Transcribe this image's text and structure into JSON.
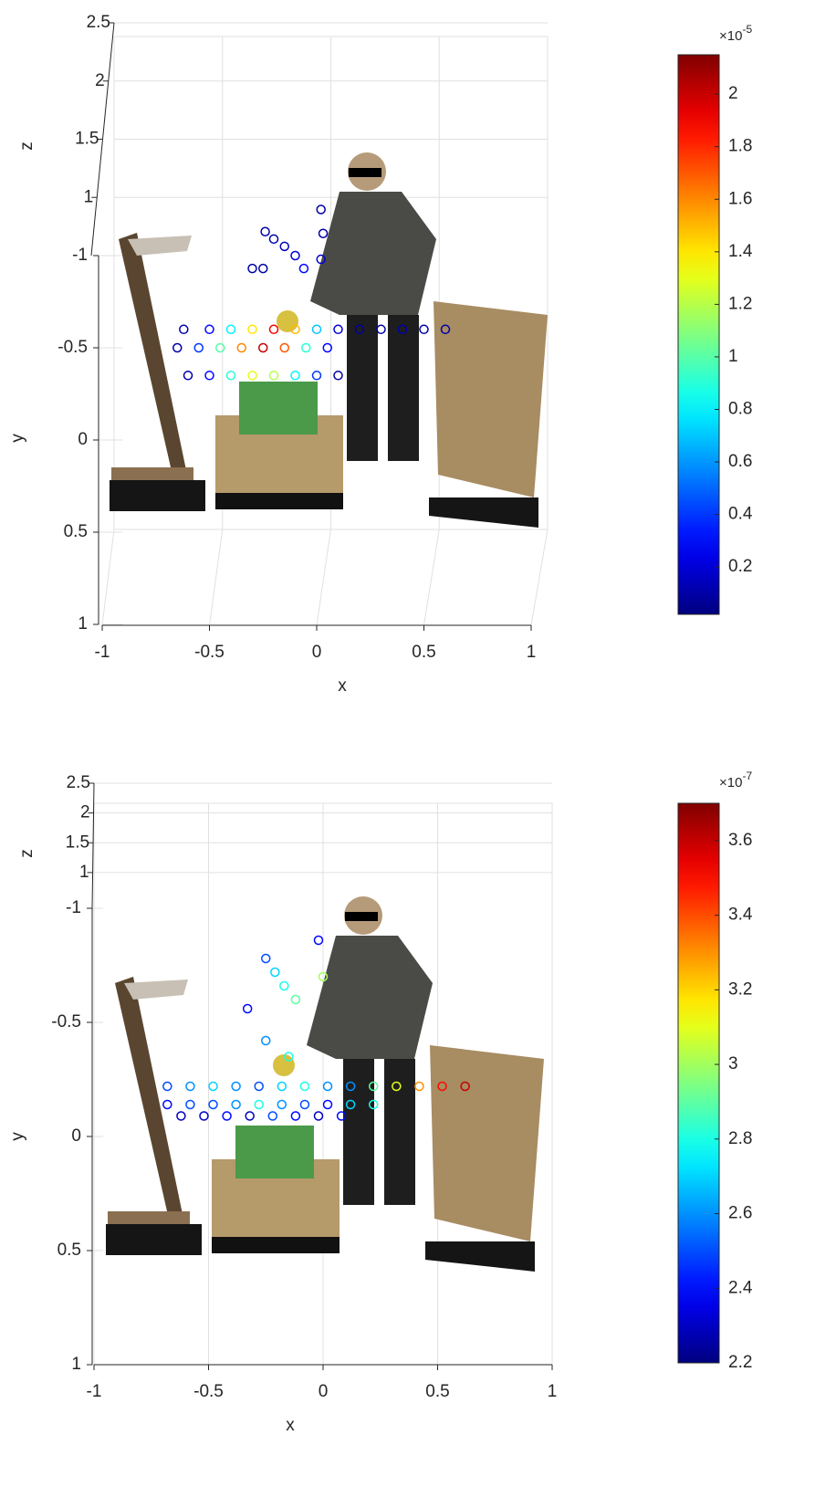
{
  "chart_data": [
    {
      "type": "scatter",
      "xlabel": "x",
      "ylabel": "y",
      "zlabel": "z",
      "xlim": [
        -1,
        1
      ],
      "xticks": [
        -1,
        -0.5,
        0,
        0.5,
        1
      ],
      "ylim": [
        -1,
        1
      ],
      "yticks": [
        -1,
        -0.5,
        0,
        0.5,
        1
      ],
      "zlim": [
        0.5,
        2.5
      ],
      "zticks": [
        1,
        1.5,
        2,
        2.5
      ],
      "x": [
        -0.62,
        -0.5,
        -0.4,
        -0.3,
        -0.2,
        -0.1,
        0,
        0.1,
        0.2,
        0.3,
        0.4,
        0.5,
        0.6,
        -0.65,
        -0.55,
        -0.45,
        -0.35,
        -0.25,
        -0.15,
        -0.05,
        0.05,
        -0.6,
        -0.5,
        -0.4,
        -0.3,
        -0.2,
        -0.1,
        0,
        0.1,
        -0.24,
        -0.2,
        -0.15,
        -0.1,
        -0.06,
        0.02,
        0.03,
        0.02,
        -0.3,
        -0.25
      ],
      "y": [
        -0.6,
        -0.6,
        -0.6,
        -0.6,
        -0.6,
        -0.6,
        -0.6,
        -0.6,
        -0.6,
        -0.6,
        -0.6,
        -0.6,
        -0.6,
        -0.5,
        -0.5,
        -0.5,
        -0.5,
        -0.5,
        -0.5,
        -0.5,
        -0.5,
        -0.35,
        -0.35,
        -0.35,
        -0.35,
        -0.35,
        -0.35,
        -0.35,
        -0.35,
        -1.13,
        -1.09,
        -1.05,
        -1.0,
        -0.93,
        -1.25,
        -1.12,
        -0.98,
        -0.93,
        -0.93
      ],
      "c": [
        0.1,
        0.3,
        0.8,
        1.4,
        1.9,
        1.5,
        0.7,
        0.2,
        0.1,
        0.1,
        0.1,
        0.1,
        0.1,
        0.1,
        0.4,
        1.0,
        1.6,
        2.0,
        1.7,
        0.9,
        0.3,
        0.1,
        0.3,
        0.9,
        1.3,
        1.2,
        0.8,
        0.4,
        0.1,
        0.1,
        0.1,
        0.15,
        0.2,
        0.3,
        0.1,
        0.1,
        0.2,
        0.1,
        0.1
      ],
      "colormap": "jet",
      "clim": [
        0.02,
        2.15
      ],
      "cticks": [
        0.2,
        0.4,
        0.6,
        0.8,
        1,
        1.2,
        1.4,
        1.6,
        1.8,
        2
      ],
      "colorbar_base": "×10",
      "colorbar_exponent": "-5",
      "grid": true
    },
    {
      "type": "scatter",
      "xlabel": "x",
      "ylabel": "y",
      "zlabel": "z",
      "xlim": [
        -1,
        1
      ],
      "xticks": [
        -1,
        -0.5,
        0,
        0.5,
        1
      ],
      "ylim": [
        -1,
        1
      ],
      "yticks": [
        -1,
        -0.5,
        0,
        0.5,
        1
      ],
      "zlim": [
        0.4,
        2.5
      ],
      "zticks": [
        1,
        1.5,
        2,
        2.5
      ],
      "x": [
        -0.68,
        -0.58,
        -0.48,
        -0.38,
        -0.28,
        -0.18,
        -0.08,
        0.02,
        0.12,
        0.22,
        0.32,
        0.42,
        0.52,
        0.62,
        -0.68,
        -0.58,
        -0.48,
        -0.38,
        -0.28,
        -0.18,
        -0.08,
        0.02,
        0.12,
        0.22,
        -0.62,
        -0.52,
        -0.42,
        -0.32,
        -0.22,
        -0.12,
        -0.02,
        0.08,
        -0.25,
        -0.21,
        -0.17,
        -0.12,
        -0.02,
        0,
        -0.33,
        -0.25,
        -0.15
      ],
      "y": [
        -0.22,
        -0.22,
        -0.22,
        -0.22,
        -0.22,
        -0.22,
        -0.22,
        -0.22,
        -0.22,
        -0.22,
        -0.22,
        -0.22,
        -0.22,
        -0.22,
        -0.14,
        -0.14,
        -0.14,
        -0.14,
        -0.14,
        -0.14,
        -0.14,
        -0.14,
        -0.14,
        -0.14,
        -0.09,
        -0.09,
        -0.09,
        -0.09,
        -0.09,
        -0.09,
        -0.09,
        -0.09,
        -0.78,
        -0.72,
        -0.66,
        -0.6,
        -0.86,
        -0.7,
        -0.56,
        -0.42,
        -0.35
      ],
      "c": [
        2.5,
        2.6,
        2.7,
        2.6,
        2.5,
        2.7,
        2.8,
        2.6,
        2.6,
        2.9,
        3.1,
        3.3,
        3.5,
        3.6,
        2.4,
        2.5,
        2.5,
        2.6,
        2.8,
        2.6,
        2.5,
        2.4,
        2.7,
        2.8,
        2.3,
        2.3,
        2.4,
        2.3,
        2.5,
        2.4,
        2.3,
        2.4,
        2.5,
        2.7,
        2.8,
        2.9,
        2.4,
        3.0,
        2.4,
        2.6,
        2.8
      ],
      "colormap": "jet",
      "clim": [
        2.2,
        3.7
      ],
      "cticks": [
        2.2,
        2.4,
        2.6,
        2.8,
        3,
        3.2,
        3.4,
        3.6
      ],
      "colorbar_base": "×10",
      "colorbar_exponent": "-7",
      "grid": true
    }
  ]
}
